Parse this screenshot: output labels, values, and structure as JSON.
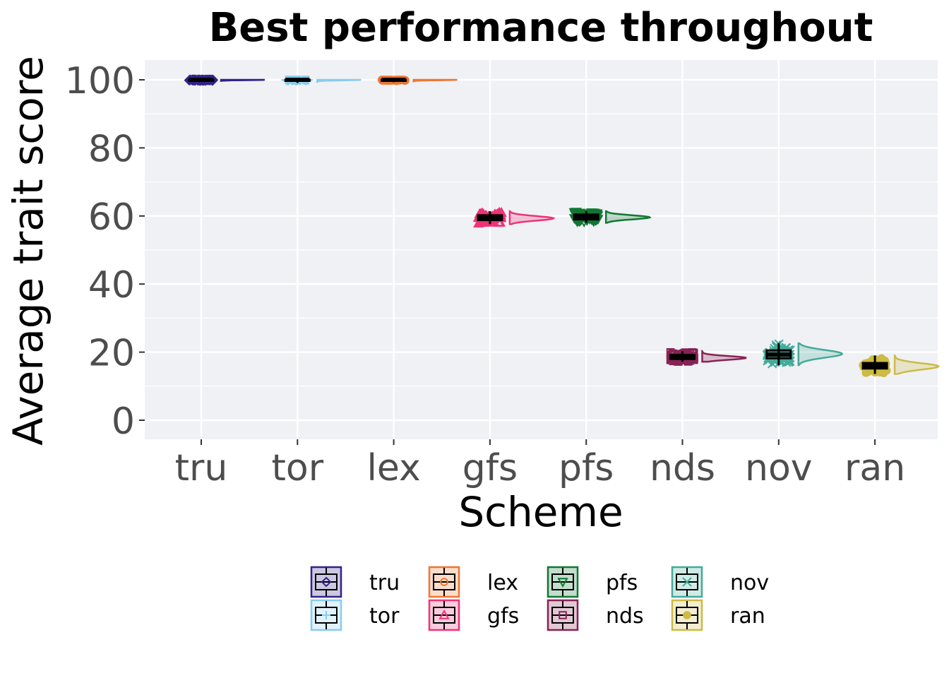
{
  "chart_data": {
    "type": "raincloud",
    "title": "Best performance throughout",
    "xlabel": "Scheme",
    "ylabel": "Average trait score",
    "categories": [
      "tru",
      "tor",
      "lex",
      "gfs",
      "pfs",
      "nds",
      "nov",
      "ran"
    ],
    "ylim": [
      -5,
      105
    ],
    "yticks": [
      0,
      20,
      40,
      60,
      80,
      100
    ],
    "grid": true,
    "legend_position": "bottom",
    "series": [
      {
        "name": "tru",
        "color": "#332288",
        "shape": "diamond",
        "median": 100.0,
        "q1": 99.9,
        "q3": 100.0,
        "min": 99.4,
        "max": 100.0,
        "density_max": 100.0
      },
      {
        "name": "tor",
        "color": "#88ccee",
        "shape": "plus",
        "median": 100.0,
        "q1": 99.9,
        "q3": 100.0,
        "min": 99.1,
        "max": 100.0,
        "density_max": 100.0
      },
      {
        "name": "lex",
        "color": "#ee7733",
        "shape": "circle",
        "median": 100.0,
        "q1": 99.9,
        "q3": 100.0,
        "min": 99.3,
        "max": 100.0,
        "density_max": 100.0
      },
      {
        "name": "gfs",
        "color": "#ee3377",
        "shape": "triangle-up",
        "median": 59.5,
        "q1": 58.8,
        "q3": 60.2,
        "min": 57.6,
        "max": 61.4,
        "density_max": 59.3
      },
      {
        "name": "pfs",
        "color": "#117733",
        "shape": "triangle-down",
        "median": 59.8,
        "q1": 59.0,
        "q3": 60.4,
        "min": 58.0,
        "max": 61.4,
        "density_max": 59.6
      },
      {
        "name": "nds",
        "color": "#882255",
        "shape": "square",
        "median": 18.6,
        "q1": 18.0,
        "q3": 19.2,
        "min": 17.2,
        "max": 20.3,
        "density_max": 18.3
      },
      {
        "name": "nov",
        "color": "#44aa99",
        "shape": "x",
        "median": 19.3,
        "q1": 18.2,
        "q3": 20.5,
        "min": 16.2,
        "max": 22.6,
        "density_max": 19.5
      },
      {
        "name": "ran",
        "color": "#ccbb44",
        "shape": "dot",
        "median": 16.0,
        "q1": 15.2,
        "q3": 16.8,
        "min": 13.6,
        "max": 19.0,
        "density_max": 15.8
      }
    ],
    "legend": {
      "columns": [
        [
          "tru",
          "tor"
        ],
        [
          "lex",
          "gfs"
        ],
        [
          "pfs",
          "nds"
        ],
        [
          "nov",
          "ran"
        ]
      ]
    }
  }
}
